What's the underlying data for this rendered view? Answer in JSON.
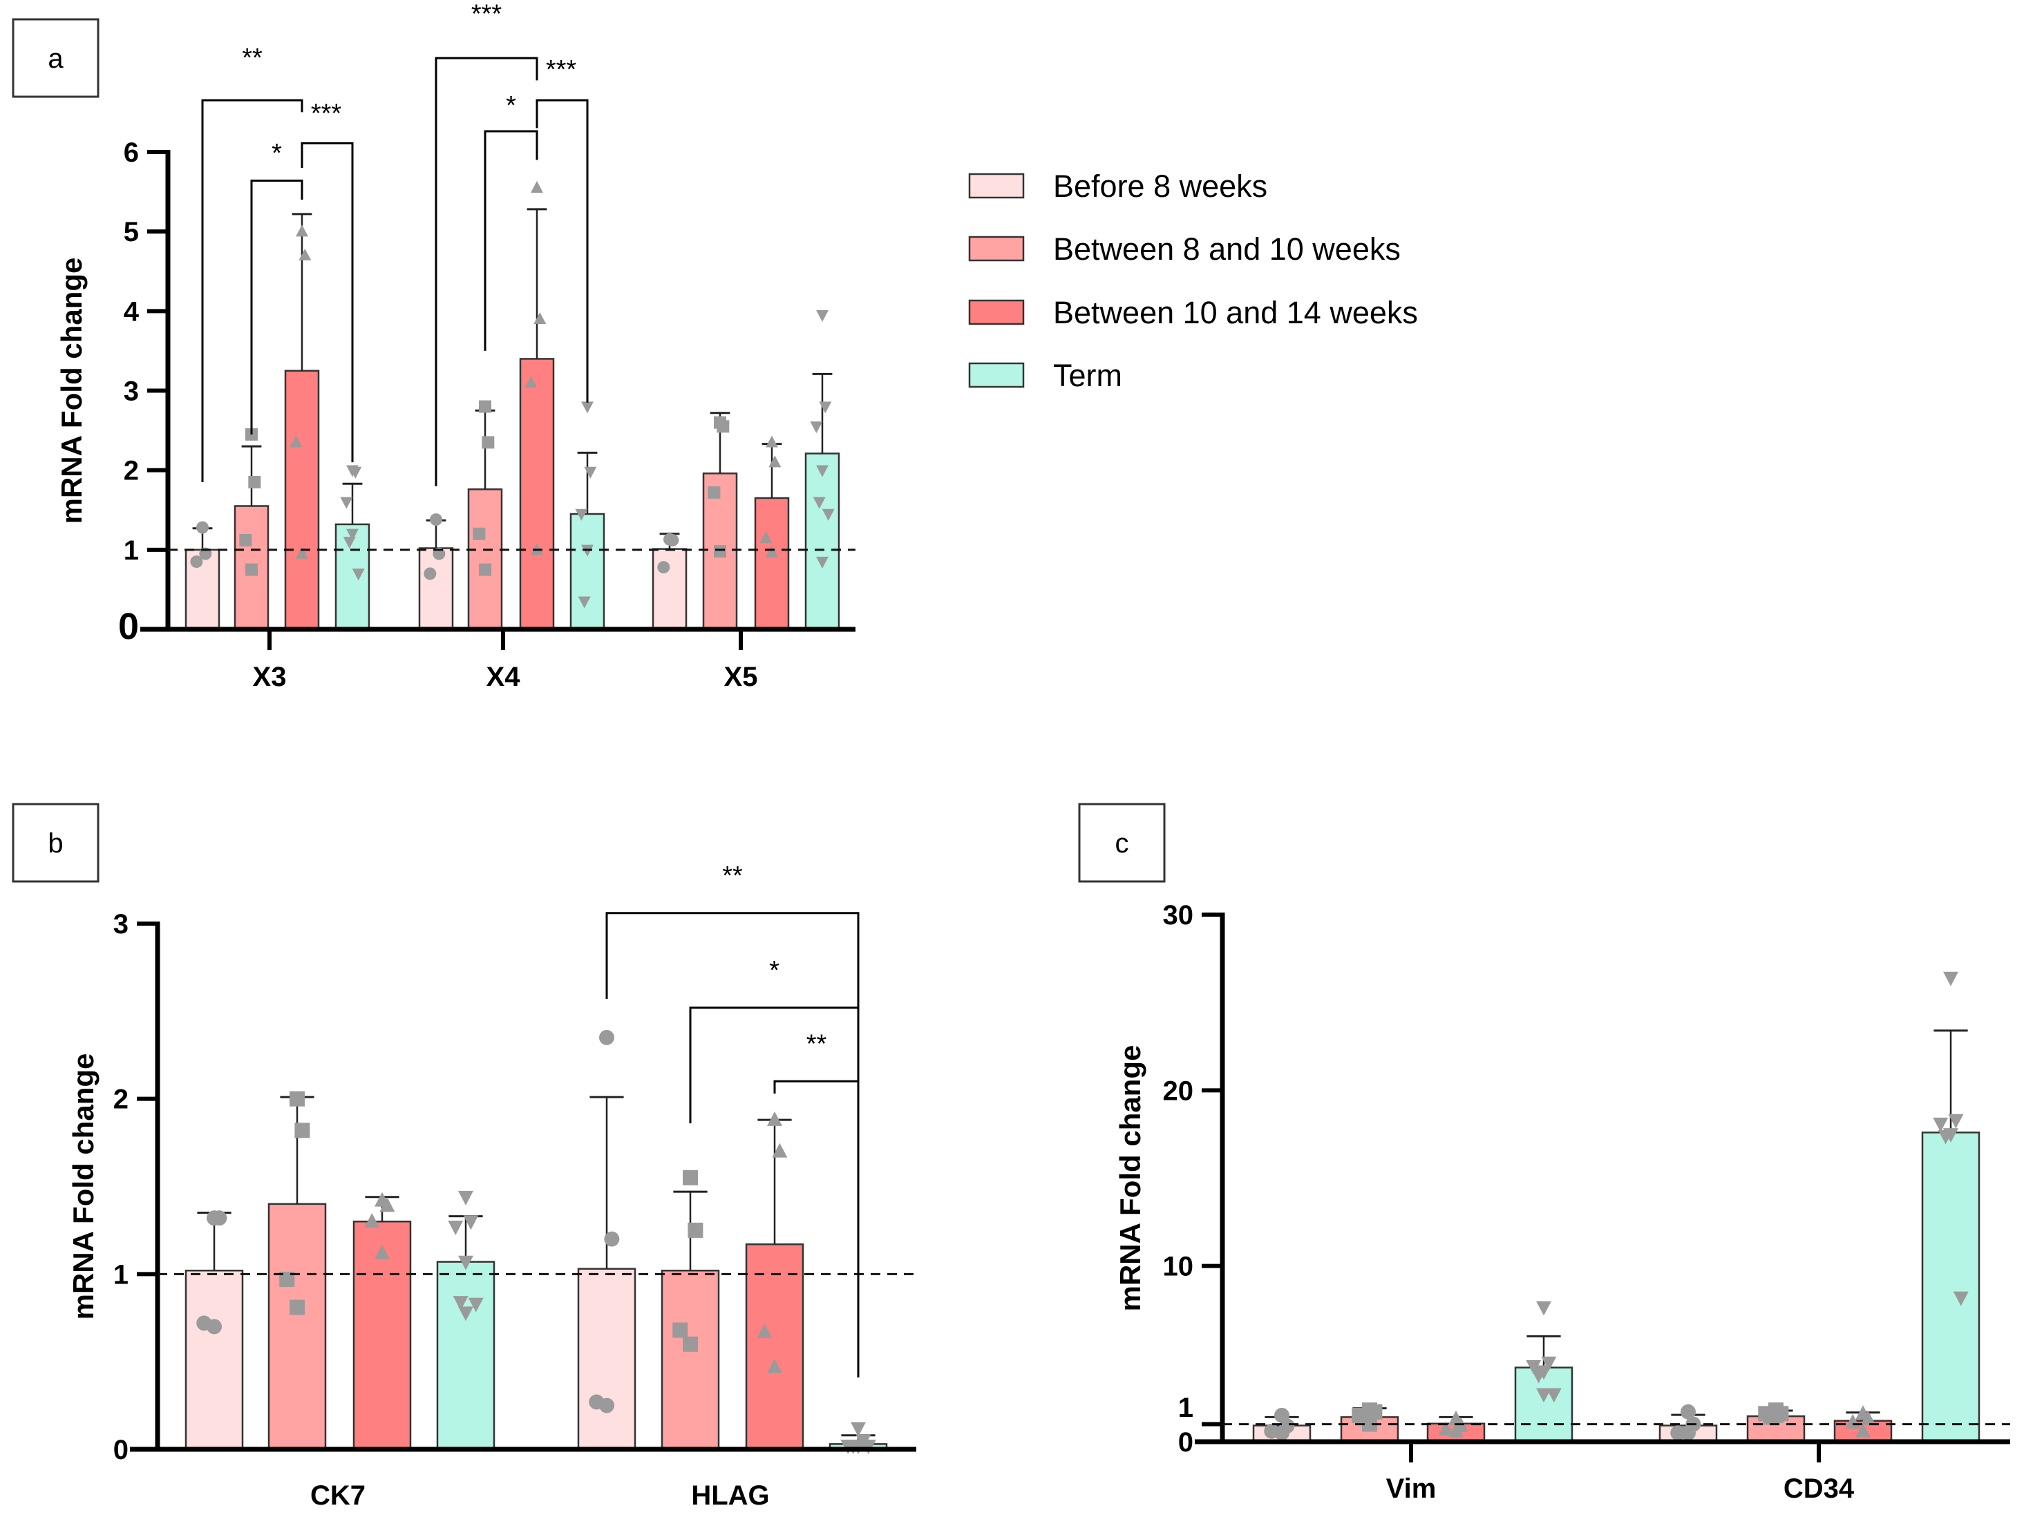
{
  "legend": {
    "items": [
      {
        "label": "Before 8 weeks",
        "color": "#FFE0E0"
      },
      {
        "label": "Between 8 and 10 weeks",
        "color": "#FFA3A3"
      },
      {
        "label": "Between 10 and 14 weeks",
        "color": "#FF8080"
      },
      {
        "label": "Term",
        "color": "#B4F5E5"
      }
    ]
  },
  "point_color": "#9A9A9A",
  "chart_data": [
    {
      "panel": "a",
      "type": "bar",
      "ylabel": "mRNA Fold change",
      "ylim": [
        0,
        6
      ],
      "yticks": [
        0,
        1,
        2,
        3,
        4,
        5,
        6
      ],
      "reference_line": 1,
      "categories": [
        "X3",
        "X4",
        "X5"
      ],
      "series": [
        {
          "name": "Before 8 weeks",
          "values": [
            1.0,
            1.02,
            1.01
          ],
          "sd_upper": [
            1.27,
            1.37,
            1.2
          ],
          "points": [
            [
              1.28,
              0.95,
              0.85
            ],
            [
              1.38,
              0.95,
              0.7
            ],
            [
              1.13,
              1.12,
              0.78
            ]
          ]
        },
        {
          "name": "Between 8 and 10 weeks",
          "values": [
            1.55,
            1.76,
            1.96
          ],
          "sd_upper": [
            2.3,
            2.75,
            2.72
          ],
          "points": [
            [
              2.45,
              1.85,
              1.12,
              0.75
            ],
            [
              2.8,
              2.35,
              1.2,
              0.75
            ],
            [
              2.6,
              2.55,
              1.72,
              0.98
            ]
          ]
        },
        {
          "name": "Between 10 and 14 weeks",
          "values": [
            3.25,
            3.4,
            1.65
          ],
          "sd_upper": [
            5.22,
            5.28,
            2.33
          ],
          "points": [
            [
              5.0,
              4.7,
              2.35,
              0.95
            ],
            [
              5.55,
              3.9,
              3.1,
              1.0
            ],
            [
              2.35,
              2.1,
              1.15,
              0.97
            ]
          ]
        },
        {
          "name": "Term",
          "values": [
            1.32,
            1.45,
            2.21
          ],
          "sd_upper": [
            1.83,
            2.22,
            3.21
          ],
          "points": [
            [
              2.0,
              1.98,
              1.6,
              1.2,
              1.1,
              0.7
            ],
            [
              2.8,
              1.98,
              1.45,
              1.0,
              0.35
            ],
            [
              3.95,
              2.8,
              2.55,
              2.0,
              1.6,
              1.45,
              0.85
            ]
          ]
        }
      ],
      "significance": [
        {
          "category": 0,
          "from": 0,
          "to": 2,
          "y": 6.65,
          "leg_from": 1.85,
          "leg_to": 6.5,
          "label": "**",
          "label_y": 7.2
        },
        {
          "category": 0,
          "from": 1,
          "to": 2,
          "y": 5.64,
          "leg_from": 2.45,
          "leg_to": 5.4,
          "label": "*",
          "label_y": 6.0
        },
        {
          "category": 0,
          "from": 2,
          "to": 3,
          "y": 6.11,
          "leg_from": 5.8,
          "leg_to": 2.1,
          "label": "***",
          "label_y": 6.5
        },
        {
          "category": 1,
          "from": 0,
          "to": 2,
          "y": 7.18,
          "leg_from": 1.8,
          "leg_to": 6.9,
          "label": "***",
          "label_y": 7.75
        },
        {
          "category": 1,
          "from": 1,
          "to": 2,
          "y": 6.26,
          "leg_from": 3.5,
          "leg_to": 5.9,
          "label": "*",
          "label_y": 6.6
        },
        {
          "category": 1,
          "from": 2,
          "to": 3,
          "y": 6.65,
          "leg_from": 6.3,
          "leg_to": 2.85,
          "label": "***",
          "label_y": 7.05
        }
      ]
    },
    {
      "panel": "b",
      "type": "bar",
      "ylabel": "mRNA Fold change",
      "ylim": [
        0,
        3
      ],
      "yticks": [
        0,
        1,
        2,
        3
      ],
      "reference_line": 1,
      "categories": [
        "CK7",
        "HLAG"
      ],
      "series": [
        {
          "name": "Before 8 weeks",
          "values": [
            1.02,
            1.03
          ],
          "sd_upper": [
            1.35,
            2.01
          ],
          "points": [
            [
              1.32,
              1.32,
              0.72,
              0.7
            ],
            [
              2.35,
              1.2,
              0.27,
              0.25
            ]
          ]
        },
        {
          "name": "Between 8 and 10 weeks",
          "values": [
            1.4,
            1.02
          ],
          "sd_upper": [
            2.01,
            1.47
          ],
          "points": [
            [
              2.0,
              1.82,
              0.97,
              0.81
            ],
            [
              1.55,
              1.25,
              0.68,
              0.6
            ]
          ]
        },
        {
          "name": "Between 10 and 14 weeks",
          "values": [
            1.3,
            1.17
          ],
          "sd_upper": [
            1.44,
            1.88
          ],
          "points": [
            [
              1.42,
              1.39,
              1.3,
              1.12
            ],
            [
              1.88,
              1.7,
              0.67,
              0.47
            ]
          ]
        },
        {
          "name": "Term",
          "values": [
            1.07,
            0.03
          ],
          "sd_upper": [
            1.33,
            0.08
          ],
          "points": [
            [
              1.44,
              1.3,
              1.27,
              1.07,
              0.84,
              0.83,
              0.78
            ],
            [
              0.12,
              0.05,
              0.02,
              0.02,
              0.02,
              0.02
            ]
          ]
        }
      ],
      "significance": [
        {
          "category": 1,
          "from": 0,
          "to": 3,
          "y": 3.06,
          "leg_from": 2.57,
          "leg_to": 2.52,
          "label": "**",
          "label_y": 3.28
        },
        {
          "category": 1,
          "from": 1,
          "to": 3,
          "y": 2.52,
          "leg_from": 1.86,
          "leg_to": 2.1,
          "label": "*",
          "label_y": 2.74
        },
        {
          "category": 1,
          "from": 2,
          "to": 3,
          "y": 2.1,
          "leg_from": 2.03,
          "leg_to": 0.41,
          "label": "**",
          "label_y": 2.32
        }
      ]
    },
    {
      "panel": "c",
      "type": "bar",
      "ylabel": "mRNA Fold change",
      "ylim": [
        0,
        30
      ],
      "yticks": [
        0,
        1,
        10,
        20,
        30
      ],
      "reference_line": 1,
      "categories": [
        "Vim",
        "CD34"
      ],
      "series": [
        {
          "name": "Before 8 weeks",
          "values": [
            0.92,
            0.92
          ],
          "sd_upper": [
            1.4,
            1.53
          ],
          "points": [
            [
              1.5,
              0.9,
              0.6,
              0.5
            ],
            [
              1.7,
              1.0,
              0.5,
              0.5
            ]
          ]
        },
        {
          "name": "Between 8 and 10 weeks",
          "values": [
            1.4,
            1.45
          ],
          "sd_upper": [
            1.9,
            1.77
          ],
          "points": [
            [
              1.8,
              1.7,
              1.5,
              1.0
            ],
            [
              1.8,
              1.6,
              1.6,
              1.5,
              1.4
            ]
          ]
        },
        {
          "name": "Between 10 and 14 weeks",
          "values": [
            1.03,
            1.19
          ],
          "sd_upper": [
            1.4,
            1.66
          ],
          "points": [
            [
              1.3,
              0.9,
              0.7,
              0.6
            ],
            [
              1.6,
              1.3,
              1.1,
              0.6
            ]
          ]
        },
        {
          "name": "Term",
          "values": [
            4.22,
            17.6
          ],
          "sd_upper": [
            6.0,
            23.4
          ],
          "points": [
            [
              7.65,
              4.5,
              4.3,
              4.0,
              3.8,
              2.7,
              2.7
            ],
            [
              26.4,
              18.3,
              18.1,
              17.5,
              17.4,
              8.2
            ]
          ]
        }
      ],
      "significance": []
    }
  ]
}
